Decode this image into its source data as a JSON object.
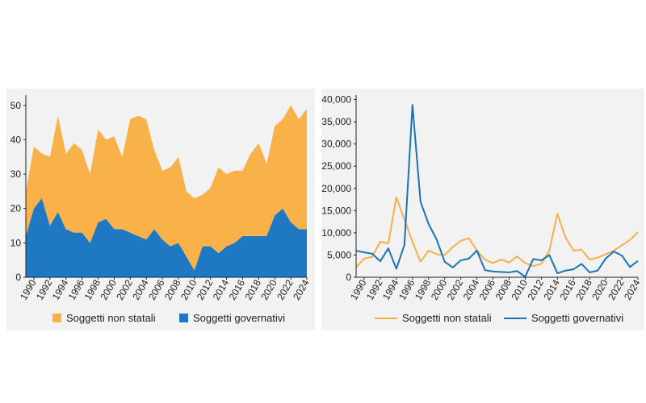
{
  "colors": {
    "non_state": "#f9b249",
    "government": "#1f78c2",
    "non_state_line": "#f5b04a",
    "government_line": "#1a73b8"
  },
  "chart_data": [
    {
      "type": "area",
      "stacked": true,
      "x": [
        1989,
        1990,
        1991,
        1992,
        1993,
        1994,
        1995,
        1996,
        1997,
        1998,
        1999,
        2000,
        2001,
        2002,
        2003,
        2004,
        2005,
        2006,
        2007,
        2008,
        2009,
        2010,
        2011,
        2012,
        2013,
        2014,
        2015,
        2016,
        2017,
        2018,
        2019,
        2020,
        2021,
        2022,
        2023,
        2024
      ],
      "x_ticks": [
        "1990",
        "1992",
        "1994",
        "1996",
        "1998",
        "2000",
        "2002",
        "2004",
        "2006",
        "2008",
        "2010",
        "2012",
        "2014",
        "2016",
        "2018",
        "2020",
        "2022",
        "2024"
      ],
      "y_ticks": [
        "0",
        "10",
        "20",
        "30",
        "40",
        "50"
      ],
      "ylim": [
        0,
        53
      ],
      "series": [
        {
          "name": "Soggetti governativi",
          "color": "government",
          "values": [
            12,
            20,
            23,
            15,
            19,
            14,
            13,
            13,
            10,
            16,
            17,
            14,
            14,
            13,
            12,
            11,
            14,
            11,
            9,
            10,
            6,
            2,
            9,
            9,
            7,
            9,
            10,
            12,
            12,
            12,
            12,
            18,
            20,
            16,
            14,
            14
          ]
        },
        {
          "name": "Soggetti non statali",
          "color": "non_state",
          "values": [
            13,
            18,
            13,
            20,
            28,
            22,
            26,
            24,
            20,
            27,
            23,
            27,
            21,
            33,
            35,
            35,
            23,
            20,
            23,
            25,
            19,
            21,
            15,
            17,
            25,
            21,
            21,
            19,
            24,
            27,
            21,
            26,
            26,
            34,
            32,
            35
          ]
        }
      ],
      "legend": [
        "Soggetti non statali",
        "Soggetti governativi"
      ]
    },
    {
      "type": "line",
      "x": [
        1989,
        1990,
        1991,
        1992,
        1993,
        1994,
        1995,
        1996,
        1997,
        1998,
        1999,
        2000,
        2001,
        2002,
        2003,
        2004,
        2005,
        2006,
        2007,
        2008,
        2009,
        2010,
        2011,
        2012,
        2013,
        2014,
        2015,
        2016,
        2017,
        2018,
        2019,
        2020,
        2021,
        2022,
        2023,
        2024
      ],
      "x_ticks": [
        "1990",
        "1992",
        "1994",
        "1996",
        "1998",
        "2000",
        "2002",
        "2004",
        "2006",
        "2008",
        "2010",
        "2012",
        "2014",
        "2016",
        "2018",
        "2020",
        "2022",
        "2024"
      ],
      "y_ticks": [
        "0",
        "5,000",
        "10,000",
        "15,000",
        "20,000",
        "25,000",
        "30,000",
        "35,000",
        "40,000"
      ],
      "ylim": [
        0,
        41000
      ],
      "series": [
        {
          "name": "Soggetti non statali",
          "color": "non_state_line",
          "values": [
            2300,
            4200,
            4600,
            8000,
            7600,
            18000,
            13000,
            8000,
            3500,
            6000,
            5200,
            5000,
            6800,
            8200,
            8800,
            6000,
            4000,
            3200,
            4000,
            3300,
            4700,
            3200,
            2500,
            3000,
            6000,
            14300,
            9000,
            6000,
            6200,
            4000,
            4400,
            5200,
            6000,
            7200,
            8400,
            10200
          ]
        },
        {
          "name": "Soggetti governativi",
          "color": "government_line",
          "values": [
            6000,
            5600,
            5300,
            3600,
            6500,
            1900,
            7300,
            38800,
            17000,
            12000,
            8500,
            3500,
            2200,
            3800,
            4200,
            6000,
            1600,
            1300,
            1200,
            1100,
            1400,
            100,
            4100,
            3800,
            5000,
            900,
            1500,
            1800,
            3000,
            1100,
            1500,
            4200,
            5800,
            4900,
            2300,
            3700
          ]
        }
      ],
      "legend": [
        "Soggetti non statali",
        "Soggetti governativi"
      ]
    }
  ]
}
